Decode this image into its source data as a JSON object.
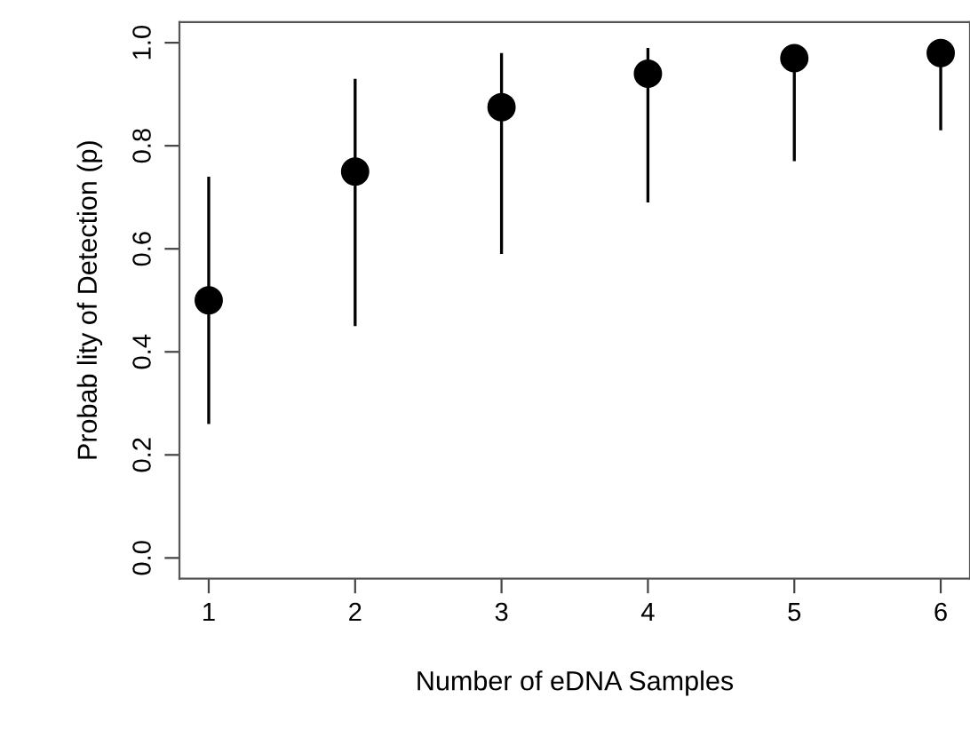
{
  "chart_data": {
    "type": "scatter",
    "xlabel": "Number of eDNA Samples",
    "ylabel": "Probab lity of Detection (p)",
    "x": [
      1,
      2,
      3,
      4,
      5,
      6
    ],
    "series": [
      {
        "color": "#000000",
        "values": [
          0.5,
          0.75,
          0.875,
          0.94,
          0.97,
          0.98
        ],
        "errors": [
          [
            0.26,
            0.74
          ],
          [
            0.45,
            0.93
          ],
          [
            0.59,
            0.98
          ],
          [
            0.69,
            0.99
          ],
          [
            0.77,
            0.99
          ],
          [
            0.83,
            0.98
          ]
        ]
      }
    ],
    "xlim": [
      0.8,
      6.2
    ],
    "ylim": [
      -0.04,
      1.04
    ],
    "xticks": [
      1,
      2,
      3,
      4,
      5,
      6
    ],
    "yticks": [
      {
        "value": 0,
        "label": "0.0"
      },
      {
        "value": 0.2,
        "label": "0.2"
      },
      {
        "value": 0.4,
        "label": "0.4"
      },
      {
        "value": 0.6,
        "label": "0.6"
      },
      {
        "value": 0.8,
        "label": "0.8"
      },
      {
        "value": 1,
        "label": "1.0"
      }
    ],
    "marker": "circle",
    "grid": false,
    "legend": false
  }
}
